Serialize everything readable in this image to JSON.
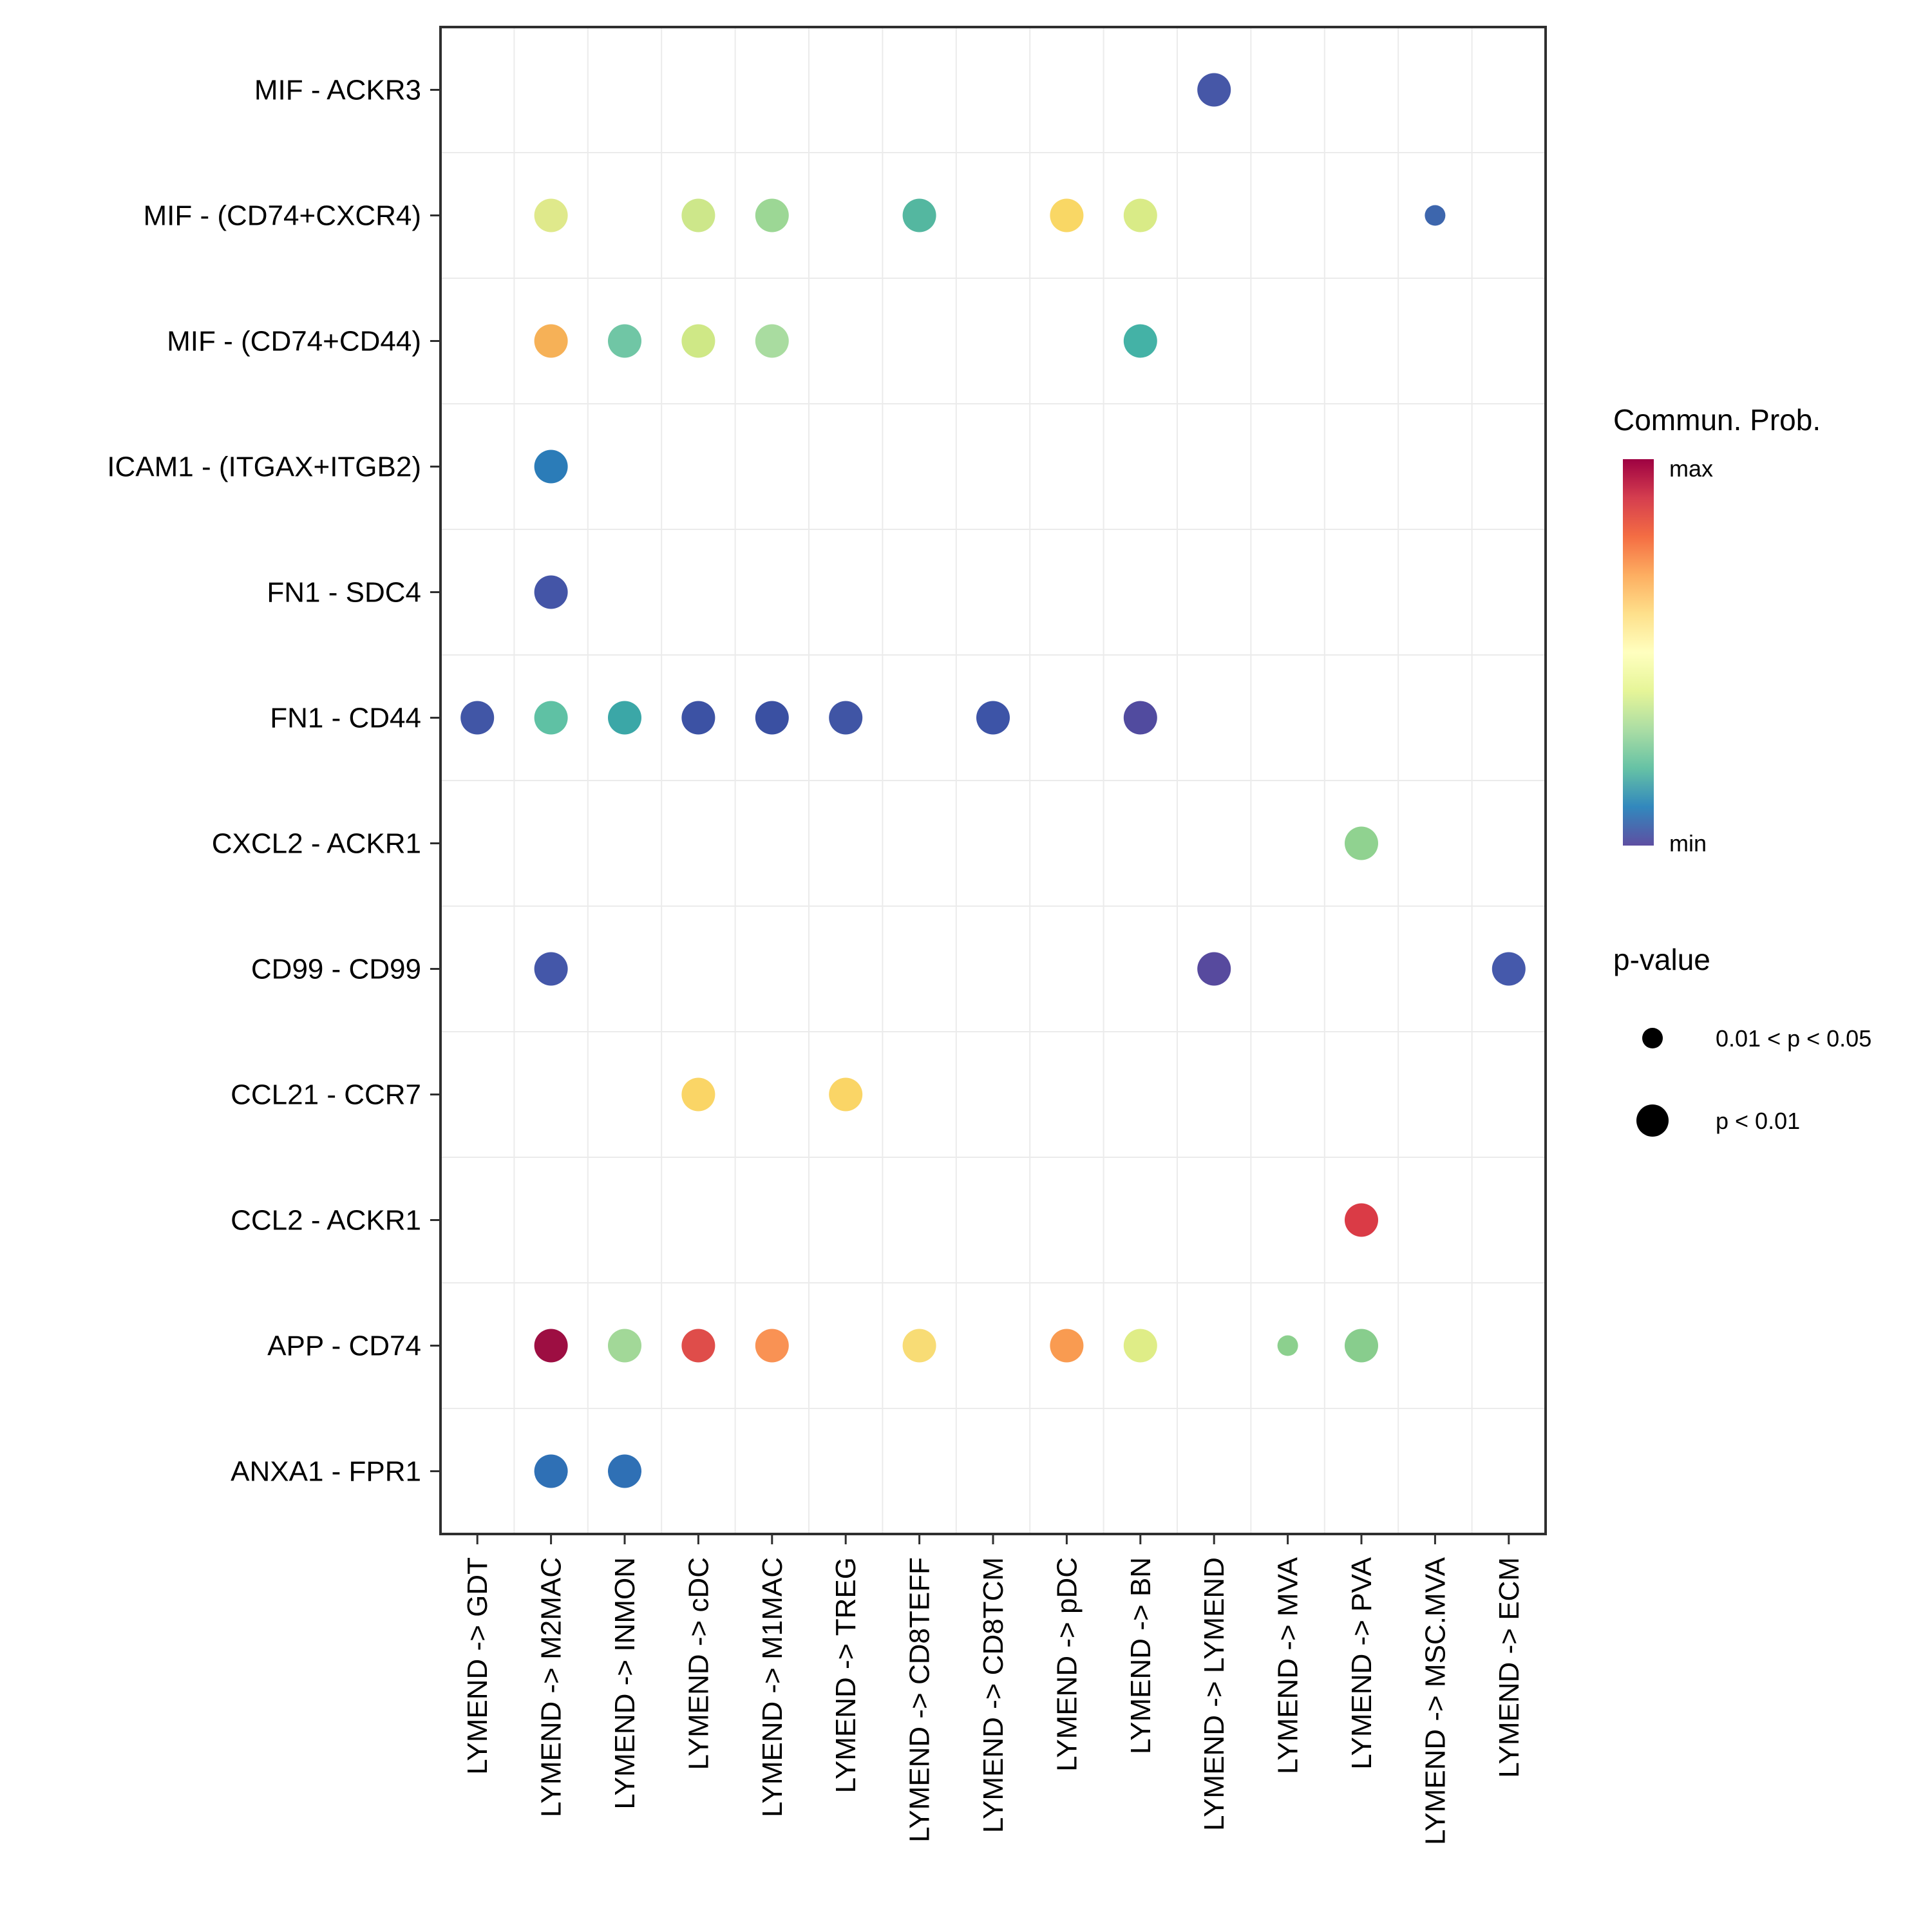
{
  "chart_data": {
    "type": "scatter",
    "subtype": "bubble-dotplot",
    "title": "",
    "rows": [
      "MIF - ACKR3",
      "MIF - (CD74+CXCR4)",
      "MIF - (CD74+CD44)",
      "ICAM1 - (ITGAX+ITGB2)",
      "FN1 - SDC4",
      "FN1 - CD44",
      "CXCL2 - ACKR1",
      "CD99 - CD99",
      "CCL21 - CCR7",
      "CCL2 - ACKR1",
      "APP - CD74",
      "ANXA1 - FPR1"
    ],
    "columns": [
      "LYMEND -> GDT",
      "LYMEND -> M2MAC",
      "LYMEND -> INMON",
      "LYMEND -> cDC",
      "LYMEND -> M1MAC",
      "LYMEND -> TREG",
      "LYMEND -> CD8TEFF",
      "LYMEND -> CD8TCM",
      "LYMEND -> pDC",
      "LYMEND -> BN",
      "LYMEND -> LYMEND",
      "LYMEND -> MVA",
      "LYMEND -> PVA",
      "LYMEND -> MSC.MVA",
      "LYMEND -> ECM"
    ],
    "points": [
      {
        "r": 0,
        "c": 10,
        "color": "#4657a7",
        "size": "large"
      },
      {
        "r": 1,
        "c": 1,
        "color": "#dfe98b",
        "size": "large"
      },
      {
        "r": 1,
        "c": 3,
        "color": "#cde78a",
        "size": "large"
      },
      {
        "r": 1,
        "c": 4,
        "color": "#9cd795",
        "size": "large"
      },
      {
        "r": 1,
        "c": 6,
        "color": "#54b7a0",
        "size": "large"
      },
      {
        "r": 1,
        "c": 8,
        "color": "#f9d765",
        "size": "large"
      },
      {
        "r": 1,
        "c": 9,
        "color": "#d9eb87",
        "size": "large"
      },
      {
        "r": 1,
        "c": 13,
        "color": "#3d66ad",
        "size": "small"
      },
      {
        "r": 2,
        "c": 1,
        "color": "#f6b157",
        "size": "large"
      },
      {
        "r": 2,
        "c": 2,
        "color": "#70c6a5",
        "size": "large"
      },
      {
        "r": 2,
        "c": 3,
        "color": "#cfe886",
        "size": "large"
      },
      {
        "r": 2,
        "c": 4,
        "color": "#a9dca0",
        "size": "large"
      },
      {
        "r": 2,
        "c": 9,
        "color": "#44b2a6",
        "size": "large"
      },
      {
        "r": 3,
        "c": 1,
        "color": "#2b7cb8",
        "size": "large"
      },
      {
        "r": 4,
        "c": 1,
        "color": "#4455a7",
        "size": "large"
      },
      {
        "r": 5,
        "c": 0,
        "color": "#4156a6",
        "size": "large"
      },
      {
        "r": 5,
        "c": 1,
        "color": "#5fc1a4",
        "size": "large"
      },
      {
        "r": 5,
        "c": 2,
        "color": "#3ba7a7",
        "size": "large"
      },
      {
        "r": 5,
        "c": 3,
        "color": "#3c52a4",
        "size": "large"
      },
      {
        "r": 5,
        "c": 4,
        "color": "#3a50a2",
        "size": "large"
      },
      {
        "r": 5,
        "c": 5,
        "color": "#4055a5",
        "size": "large"
      },
      {
        "r": 5,
        "c": 7,
        "color": "#3d54a7",
        "size": "large"
      },
      {
        "r": 5,
        "c": 9,
        "color": "#514b9f",
        "size": "large"
      },
      {
        "r": 6,
        "c": 12,
        "color": "#90d290",
        "size": "large"
      },
      {
        "r": 7,
        "c": 1,
        "color": "#4457a9",
        "size": "large"
      },
      {
        "r": 7,
        "c": 10,
        "color": "#574a9e",
        "size": "large"
      },
      {
        "r": 7,
        "c": 14,
        "color": "#4559ab",
        "size": "large"
      },
      {
        "r": 8,
        "c": 3,
        "color": "#fad566",
        "size": "large"
      },
      {
        "r": 8,
        "c": 5,
        "color": "#fad566",
        "size": "large"
      },
      {
        "r": 9,
        "c": 12,
        "color": "#da3b46",
        "size": "large"
      },
      {
        "r": 10,
        "c": 1,
        "color": "#9d0e42",
        "size": "large"
      },
      {
        "r": 10,
        "c": 2,
        "color": "#a2d898",
        "size": "large"
      },
      {
        "r": 10,
        "c": 3,
        "color": "#df4d4a",
        "size": "large"
      },
      {
        "r": 10,
        "c": 4,
        "color": "#f99254",
        "size": "large"
      },
      {
        "r": 10,
        "c": 6,
        "color": "#f8dc75",
        "size": "large"
      },
      {
        "r": 10,
        "c": 8,
        "color": "#f99b51",
        "size": "large"
      },
      {
        "r": 10,
        "c": 9,
        "color": "#dfed87",
        "size": "large"
      },
      {
        "r": 10,
        "c": 11,
        "color": "#8cd08e",
        "size": "small"
      },
      {
        "r": 10,
        "c": 12,
        "color": "#88cd8d",
        "size": "large"
      },
      {
        "r": 11,
        "c": 1,
        "color": "#2f70b5",
        "size": "large"
      },
      {
        "r": 11,
        "c": 2,
        "color": "#2f70b5",
        "size": "large"
      }
    ],
    "legend_color": {
      "title": "Commun. Prob.",
      "max_label": "max",
      "min_label": "min",
      "gradient_top_to_bottom": [
        "#9e0142",
        "#d53e4f",
        "#f46d43",
        "#fdae61",
        "#fee08b",
        "#ffffbf",
        "#e6f598",
        "#abdda4",
        "#66c2a5",
        "#3288bd",
        "#5e4fa2"
      ]
    },
    "legend_size": {
      "title": "p-value",
      "items": [
        {
          "label": "0.01 < p < 0.05",
          "size": "small"
        },
        {
          "label": "p < 0.01",
          "size": "large"
        }
      ]
    },
    "layout_hints": {
      "grid": "minor lines between categories",
      "legend_position": "right",
      "x_labels_rotated": true
    }
  }
}
